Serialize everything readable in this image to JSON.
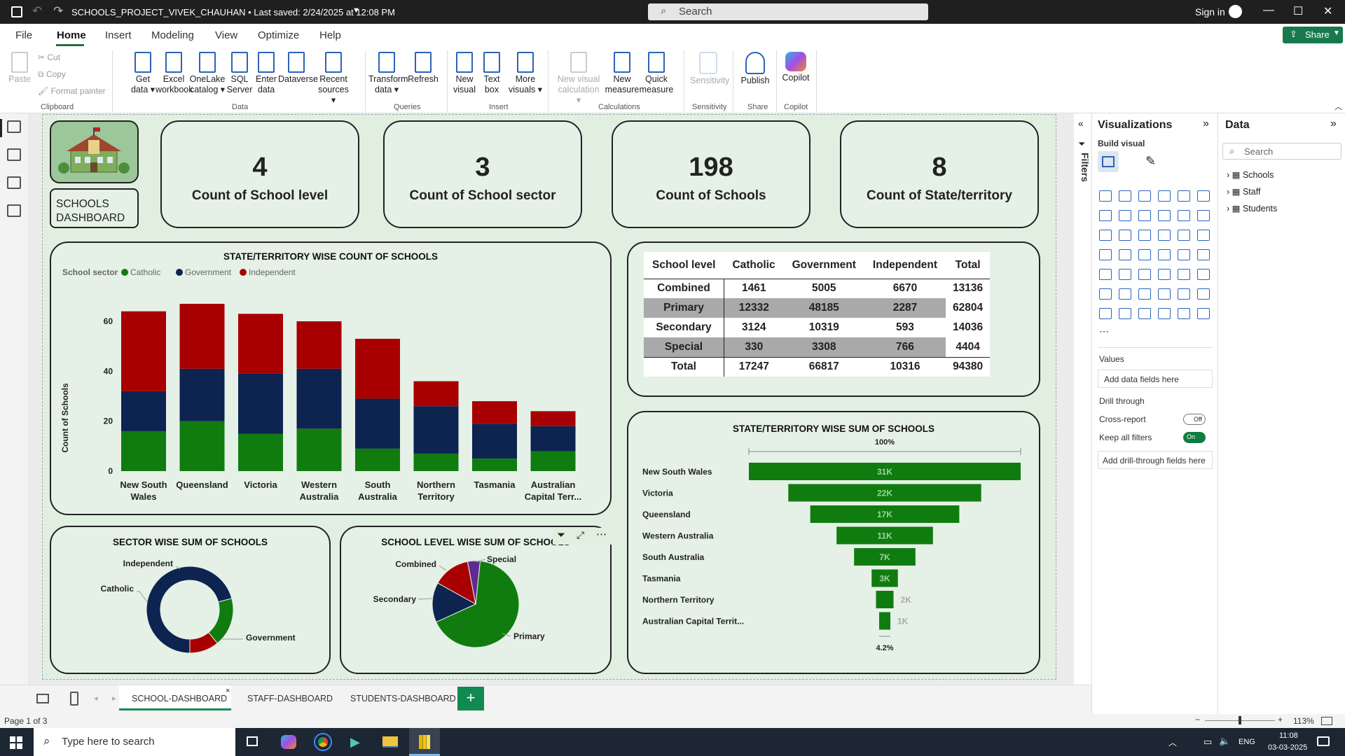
{
  "window": {
    "title": "SCHOOLS_PROJECT_VIVEK_CHAUHAN • Last saved: 2/24/2025 at 12:08 PM",
    "search_placeholder": "Search",
    "sign_in": "Sign in"
  },
  "menu": {
    "items": [
      "File",
      "Home",
      "Insert",
      "Modeling",
      "View",
      "Optimize",
      "Help"
    ],
    "active": "Home",
    "share": "Share"
  },
  "ribbon": {
    "clipboard": {
      "paste": "Paste",
      "cut": "Cut",
      "copy": "Copy",
      "format_painter": "Format painter",
      "group": "Clipboard"
    },
    "data_buttons": [
      {
        "label": "Get data",
        "l2": "data ▾",
        "l1": "Get"
      },
      {
        "l1": "Excel",
        "l2": "workbook"
      },
      {
        "l1": "OneLake",
        "l2": "catalog ▾"
      },
      {
        "l1": "SQL",
        "l2": "Server"
      },
      {
        "l1": "Enter",
        "l2": "data"
      },
      {
        "l1": "Dataverse",
        "l2": ""
      },
      {
        "l1": "Recent",
        "l2": "sources ▾"
      }
    ],
    "data_group": "Data",
    "queries_buttons": [
      {
        "l1": "Transform",
        "l2": "data ▾"
      },
      {
        "l1": "Refresh",
        "l2": ""
      }
    ],
    "queries_group": "Queries",
    "insert_buttons": [
      {
        "l1": "New",
        "l2": "visual"
      },
      {
        "l1": "Text",
        "l2": "box"
      },
      {
        "l1": "More",
        "l2": "visuals ▾"
      }
    ],
    "insert_group": "Insert",
    "calc_buttons": [
      {
        "l1": "New visual",
        "l2": "calculation ▾"
      },
      {
        "l1": "New",
        "l2": "measure"
      },
      {
        "l1": "Quick",
        "l2": "measure"
      }
    ],
    "calc_group": "Calculations",
    "sensitivity": {
      "label": "Sensitivity",
      "group": "Sensitivity"
    },
    "publish": {
      "label": "Publish",
      "group": "Share"
    },
    "copilot": {
      "label": "Copilot",
      "group": "Copilot"
    }
  },
  "dashboard": {
    "logo_title": "SCHOOLS DASHBOARD",
    "kpis": [
      {
        "value": "4",
        "label": "Count of School level"
      },
      {
        "value": "3",
        "label": "Count of School sector"
      },
      {
        "value": "198",
        "label": "Count of Schools"
      },
      {
        "value": "8",
        "label": "Count of State/territory"
      }
    ],
    "matrix": {
      "headers": [
        "School level",
        "Catholic",
        "Government",
        "Independent",
        "Total"
      ],
      "rows": [
        [
          "Combined",
          "1461",
          "5005",
          "6670",
          "13136"
        ],
        [
          "Primary",
          "12332",
          "48185",
          "2287",
          "62804"
        ],
        [
          "Secondary",
          "3124",
          "10319",
          "593",
          "14036"
        ],
        [
          "Special",
          "330",
          "3308",
          "766",
          "4404"
        ],
        [
          "Total",
          "17247",
          "66817",
          "10316",
          "94380"
        ]
      ]
    }
  },
  "chart_data": [
    {
      "type": "bar",
      "stacked": true,
      "title": "STATE/TERRITORY WISE COUNT OF SCHOOLS",
      "legend_title": "School sector",
      "ylabel": "Count of Schools",
      "xlabel": "",
      "ylim": [
        0,
        68
      ],
      "yticks": [
        0,
        20,
        40,
        60
      ],
      "categories": [
        "New South Wales",
        "Queensland",
        "Victoria",
        "Western Australia",
        "South Australia",
        "Northern Territory",
        "Tasmania",
        "Australian Capital Terr..."
      ],
      "series": [
        {
          "name": "Catholic",
          "color": "#107c10",
          "values": [
            16,
            20,
            15,
            17,
            9,
            7,
            5,
            8
          ]
        },
        {
          "name": "Government",
          "color": "#0d2350",
          "values": [
            16,
            21,
            24,
            24,
            20,
            19,
            14,
            10
          ]
        },
        {
          "name": "Independent",
          "color": "#a80000",
          "values": [
            32,
            26,
            24,
            19,
            24,
            10,
            9,
            6
          ]
        }
      ]
    },
    {
      "type": "funnel",
      "title": "STATE/TERRITORY WISE SUM OF SCHOOLS",
      "top_label": "100%",
      "bottom_label": "4.2%",
      "color": "#107c10",
      "categories": [
        "New South Wales",
        "Victoria",
        "Queensland",
        "Western Australia",
        "South Australia",
        "Tasmania",
        "Northern Territory",
        "Australian Capital Territ..."
      ],
      "values": [
        31000,
        22000,
        17000,
        11000,
        7000,
        3000,
        2000,
        1000
      ],
      "labels": [
        "31K",
        "22K",
        "17K",
        "11K",
        "7K",
        "3K",
        "2K",
        "1K"
      ]
    },
    {
      "type": "pie",
      "donut": true,
      "title": "SECTOR WISE SUM OF SCHOOLS",
      "categories": [
        "Government",
        "Catholic",
        "Independent"
      ],
      "values": [
        66817,
        17247,
        10316
      ],
      "colors": [
        "#0d2350",
        "#107c10",
        "#a80000"
      ]
    },
    {
      "type": "pie",
      "title": "SCHOOL LEVEL WISE SUM OF SCHOOLS",
      "categories": [
        "Primary",
        "Secondary",
        "Combined",
        "Special"
      ],
      "values": [
        62804,
        14036,
        13136,
        4404
      ],
      "colors": [
        "#107c10",
        "#0d2350",
        "#a80000",
        "#5c2d91"
      ]
    }
  ],
  "visualizations": {
    "title": "Visualizations",
    "build_visual": "Build visual",
    "values": "Values",
    "add_data": "Add data fields here",
    "drill_through": "Drill through",
    "cross_report": "Cross-report",
    "cross_state": "Off",
    "keep_filters": "Keep all filters",
    "keep_state": "On",
    "add_drill": "Add drill-through fields here",
    "filters": "Filters"
  },
  "data_pane": {
    "title": "Data",
    "search": "Search",
    "tables": [
      "Schools",
      "Staff",
      "Students"
    ]
  },
  "pages": {
    "tabs": [
      "SCHOOL-DASHBOARD",
      "STAFF-DASHBOARD",
      "STUDENTS-DASHBOARD"
    ],
    "active": "SCHOOL-DASHBOARD",
    "add": "+"
  },
  "status": {
    "page": "Page 1 of 3",
    "zoom": "113%"
  },
  "taskbar": {
    "search": "Type here to search",
    "lang": "ENG",
    "time": "11:08",
    "date": "03-03-2025"
  }
}
